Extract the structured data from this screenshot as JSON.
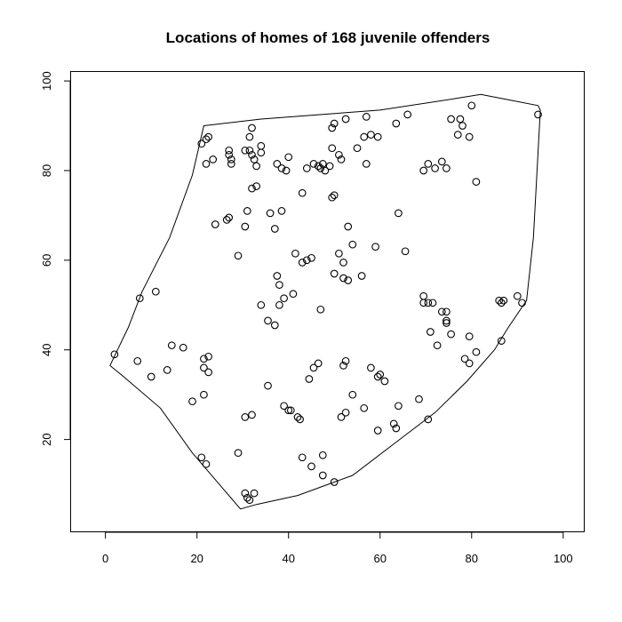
{
  "chart_data": {
    "type": "scatter",
    "title": "Locations of homes of 168 juvenile offenders",
    "xlabel": "",
    "ylabel": "",
    "xlim": [
      -7.5,
      104.5
    ],
    "ylim": [
      -0.5,
      102
    ],
    "xticks": [
      0,
      20,
      40,
      60,
      80,
      100
    ],
    "yticks": [
      20,
      40,
      60,
      80,
      100
    ],
    "xtick_labels": [
      "0",
      "20",
      "40",
      "60",
      "80",
      "100"
    ],
    "ytick_labels": [
      "20",
      "40",
      "60",
      "80",
      "100"
    ],
    "grid": false,
    "points": [
      [
        21,
        86
      ],
      [
        22,
        87
      ],
      [
        22.5,
        87.5
      ],
      [
        22,
        81.5
      ],
      [
        23.5,
        82.5
      ],
      [
        27,
        84.5
      ],
      [
        27,
        83.5
      ],
      [
        27.5,
        82.5
      ],
      [
        27.5,
        81.5
      ],
      [
        30.5,
        84.5
      ],
      [
        31.5,
        84.5
      ],
      [
        32,
        83.5
      ],
      [
        31.5,
        87.5
      ],
      [
        32,
        89.5
      ],
      [
        32.5,
        82.5
      ],
      [
        33,
        81
      ],
      [
        33,
        76.5
      ],
      [
        32,
        76
      ],
      [
        34,
        85.5
      ],
      [
        34,
        84
      ],
      [
        37.5,
        81.5
      ],
      [
        38.5,
        80.5
      ],
      [
        39.5,
        80
      ],
      [
        40,
        83
      ],
      [
        44,
        80.5
      ],
      [
        45.5,
        81.5
      ],
      [
        46.5,
        81
      ],
      [
        47,
        80.5
      ],
      [
        47.5,
        81.5
      ],
      [
        48,
        80
      ],
      [
        49,
        81
      ],
      [
        49.5,
        89.5
      ],
      [
        50,
        90.5
      ],
      [
        49.5,
        85
      ],
      [
        51,
        83.5
      ],
      [
        51.5,
        82.5
      ],
      [
        52.5,
        91.5
      ],
      [
        55,
        85
      ],
      [
        56.5,
        87.5
      ],
      [
        57,
        92
      ],
      [
        57,
        81.5
      ],
      [
        58,
        88
      ],
      [
        59.5,
        87.5
      ],
      [
        63.5,
        90.5
      ],
      [
        66,
        92.5
      ],
      [
        69.5,
        80
      ],
      [
        70.5,
        81.5
      ],
      [
        72,
        80.5
      ],
      [
        73.5,
        82
      ],
      [
        74.5,
        80.5
      ],
      [
        75.5,
        91.5
      ],
      [
        77,
        88
      ],
      [
        77.5,
        91.5
      ],
      [
        78,
        90
      ],
      [
        79.5,
        87.5
      ],
      [
        80,
        94.5
      ],
      [
        81,
        77.5
      ],
      [
        94.5,
        92.5
      ],
      [
        31,
        71
      ],
      [
        30.5,
        67.5
      ],
      [
        26.5,
        69
      ],
      [
        27,
        69.5
      ],
      [
        24,
        68
      ],
      [
        29,
        61
      ],
      [
        36,
        70.5
      ],
      [
        37,
        67
      ],
      [
        38.5,
        71
      ],
      [
        43,
        75
      ],
      [
        49.5,
        74
      ],
      [
        50,
        74.5
      ],
      [
        53,
        67.5
      ],
      [
        54,
        63.5
      ],
      [
        59,
        63
      ],
      [
        64,
        70.5
      ],
      [
        65.5,
        62
      ],
      [
        51,
        61.5
      ],
      [
        52,
        59.5
      ],
      [
        41.5,
        61.5
      ],
      [
        43,
        59.5
      ],
      [
        44,
        60
      ],
      [
        45,
        60.5
      ],
      [
        37.5,
        56.5
      ],
      [
        38,
        54.5
      ],
      [
        39,
        51.5
      ],
      [
        41,
        52.5
      ],
      [
        38,
        50
      ],
      [
        34,
        50
      ],
      [
        35.5,
        46.5
      ],
      [
        37,
        45.5
      ],
      [
        47,
        49
      ],
      [
        50,
        57
      ],
      [
        52,
        56
      ],
      [
        53,
        55.5
      ],
      [
        56,
        56.5
      ],
      [
        69.5,
        52
      ],
      [
        69.5,
        50.5
      ],
      [
        70.5,
        50.5
      ],
      [
        71.5,
        50.5
      ],
      [
        73.5,
        48.5
      ],
      [
        74.5,
        48.5
      ],
      [
        74.5,
        46.5
      ],
      [
        74.5,
        46
      ],
      [
        71,
        44
      ],
      [
        72.5,
        41
      ],
      [
        75.5,
        43.5
      ],
      [
        79.5,
        43
      ],
      [
        78.5,
        38
      ],
      [
        79.5,
        37
      ],
      [
        81,
        39.5
      ],
      [
        86,
        51
      ],
      [
        86.5,
        50.5
      ],
      [
        87,
        51
      ],
      [
        90,
        52
      ],
      [
        91,
        50.5
      ],
      [
        86.5,
        42
      ],
      [
        7.5,
        51.5
      ],
      [
        11,
        53
      ],
      [
        2,
        39
      ],
      [
        7,
        37.5
      ],
      [
        10,
        34
      ],
      [
        13.5,
        35.5
      ],
      [
        14.5,
        41
      ],
      [
        17,
        40.5
      ],
      [
        21.5,
        38
      ],
      [
        22.5,
        38.5
      ],
      [
        21.5,
        36
      ],
      [
        22.5,
        35
      ],
      [
        21.5,
        30
      ],
      [
        19,
        28.5
      ],
      [
        29,
        17
      ],
      [
        21,
        16
      ],
      [
        22,
        14.5
      ],
      [
        30.5,
        8
      ],
      [
        31,
        7
      ],
      [
        31.5,
        6.5
      ],
      [
        32.5,
        8
      ],
      [
        30.5,
        25
      ],
      [
        32,
        25.5
      ],
      [
        35.5,
        32
      ],
      [
        39,
        27.5
      ],
      [
        40,
        26.5
      ],
      [
        40.5,
        26.5
      ],
      [
        42,
        25
      ],
      [
        42.5,
        24.5
      ],
      [
        44.5,
        33.5
      ],
      [
        45.5,
        36
      ],
      [
        46.5,
        37
      ],
      [
        45,
        14
      ],
      [
        43,
        16
      ],
      [
        47.5,
        16.5
      ],
      [
        47.5,
        12
      ],
      [
        50,
        10.5
      ],
      [
        51.5,
        25
      ],
      [
        52.5,
        26
      ],
      [
        52,
        36.5
      ],
      [
        52.5,
        37.5
      ],
      [
        54,
        30
      ],
      [
        56.5,
        27
      ],
      [
        58,
        36
      ],
      [
        59.5,
        34
      ],
      [
        60,
        34.5
      ],
      [
        61,
        33
      ],
      [
        59.5,
        22
      ],
      [
        63,
        23.5
      ],
      [
        63.5,
        22.5
      ],
      [
        64,
        27.5
      ],
      [
        68.5,
        29
      ],
      [
        70.5,
        24.5
      ]
    ],
    "hull": [
      [
        21.5,
        90
      ],
      [
        34,
        91.5
      ],
      [
        60,
        93.5
      ],
      [
        76,
        96
      ],
      [
        82,
        97
      ],
      [
        87,
        96
      ],
      [
        94.5,
        94.5
      ],
      [
        95,
        93.5
      ],
      [
        93.5,
        65
      ],
      [
        92,
        51
      ],
      [
        88,
        45
      ],
      [
        85,
        40
      ],
      [
        79,
        33
      ],
      [
        72,
        26
      ],
      [
        63,
        19
      ],
      [
        54,
        12
      ],
      [
        42,
        7.5
      ],
      [
        33,
        5.5
      ],
      [
        29.5,
        4.5
      ],
      [
        19,
        17
      ],
      [
        12,
        27
      ],
      [
        4,
        34
      ],
      [
        1,
        36.5
      ],
      [
        5,
        45
      ],
      [
        8,
        53
      ],
      [
        14,
        65
      ],
      [
        19,
        79
      ]
    ]
  }
}
